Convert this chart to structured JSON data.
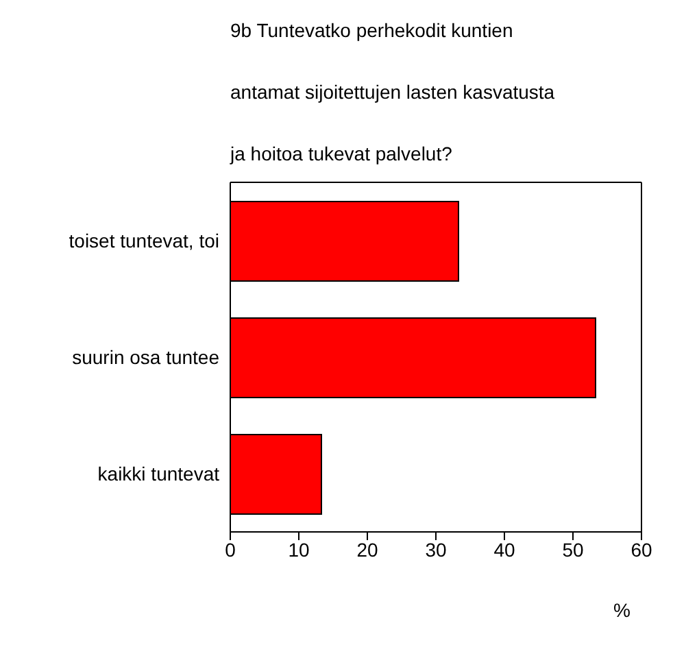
{
  "chart_data": {
    "type": "bar",
    "orientation": "horizontal",
    "title": "9b Tuntevatko perhekodit kuntien antamat sijoitettujen lasten kasvatusta ja hoitoa tukevat palvelut?",
    "categories": [
      "toiset tuntevat, toi",
      "suurin osa tuntee",
      "kaikki tuntevat"
    ],
    "values": [
      33.3,
      53.3,
      13.3
    ],
    "color": "#ff0000",
    "xlim": [
      0,
      60
    ],
    "xticks": [
      0,
      10,
      20,
      30,
      40,
      50,
      60
    ],
    "xlabel": "%"
  }
}
